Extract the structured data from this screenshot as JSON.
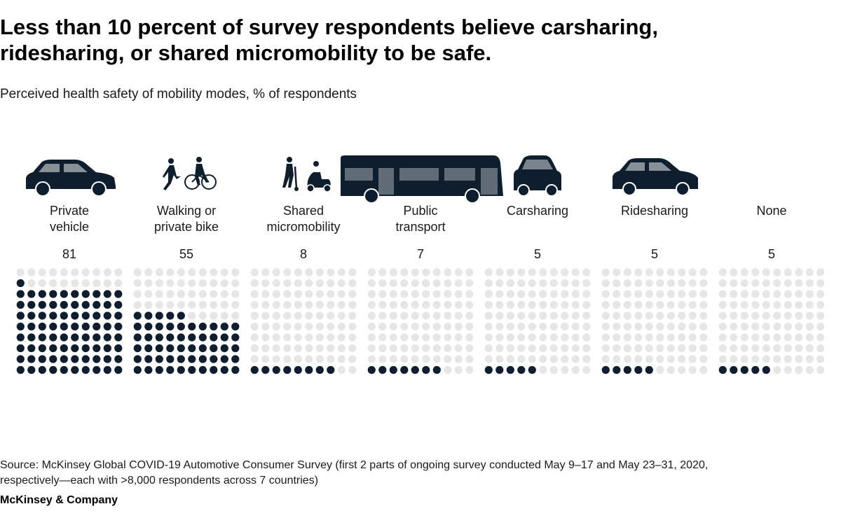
{
  "header": {
    "title": "Less than 10 percent of survey respondents believe carsharing, ridesharing, or shared micromobility to be safe.",
    "subtitle": "Perceived health safety of mobility modes, % of respondents"
  },
  "chart_data": {
    "type": "waffle",
    "unit": "%",
    "grid": "10x10 dots per category",
    "colors": {
      "filled": "#0f1e2e",
      "empty": "#e6e6e6",
      "icon": "#0f1e2e"
    },
    "categories": [
      {
        "label_lines": [
          "Private",
          "vehicle"
        ],
        "value": 81,
        "icon": "car-icon"
      },
      {
        "label_lines": [
          "Walking or",
          "private bike"
        ],
        "value": 55,
        "icon": "walking-cyclist-icon"
      },
      {
        "label_lines": [
          "Shared",
          "micromobility"
        ],
        "value": 8,
        "icon": "scooter-icon"
      },
      {
        "label_lines": [
          "Public",
          "transport"
        ],
        "value": 7,
        "icon": "bus-icon"
      },
      {
        "label_lines": [
          "Carsharing"
        ],
        "value": 5,
        "icon": "small-car-icon"
      },
      {
        "label_lines": [
          "Ridesharing"
        ],
        "value": 5,
        "icon": "ride-car-icon"
      },
      {
        "label_lines": [
          "None"
        ],
        "value": 5,
        "icon": null
      }
    ]
  },
  "footer": {
    "source": "Source: McKinsey Global COVID-19 Automotive Consumer Survey (first 2 parts of ongoing survey conducted May 9–17 and May 23–31, 2020, respectively—each with >8,000 respondents across 7 countries)",
    "brand": "McKinsey & Company"
  }
}
